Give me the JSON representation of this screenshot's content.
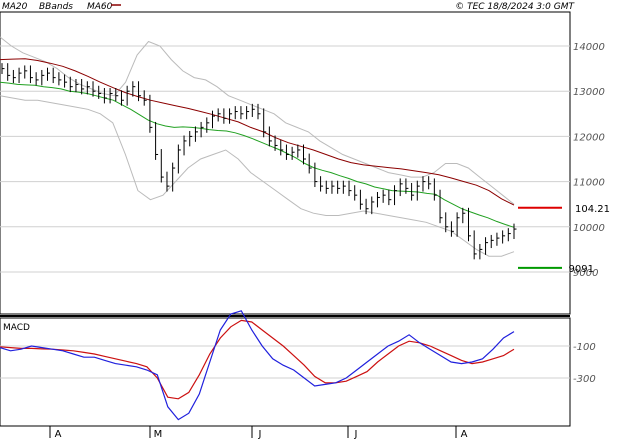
{
  "header": {
    "legend": [
      {
        "label": "MA20",
        "color": "#20a020"
      },
      {
        "label": "BBands",
        "color": "#aaaaaa"
      },
      {
        "label": "MA60",
        "color": "#8b0000"
      }
    ],
    "stamp": "© TEC 18/8/2024 3:0 GMT"
  },
  "colors": {
    "grid": "#d0d0d0",
    "candles": "#000000",
    "ma20": "#20a020",
    "ma60": "#8b0000",
    "bbands": "#bbbbbb",
    "flag_top": "#dd0000",
    "flag_bottom": "#009900",
    "macd_line": "#2020dd",
    "signal_line": "#cc1111"
  },
  "chart_data": [
    {
      "type": "line",
      "title": "",
      "y_ticks": [
        "14000",
        "13000",
        "12000",
        "11000",
        "10000",
        "9000"
      ],
      "ylim": [
        8800,
        14800
      ],
      "x_months": [
        "A",
        "M",
        "J",
        "J",
        "A"
      ],
      "price_ohlc_close": [
        13500,
        13350,
        13300,
        13400,
        13450,
        13300,
        13250,
        13350,
        13400,
        13300,
        13250,
        13200,
        13100,
        13150,
        13050,
        13100,
        13000,
        12950,
        12850,
        12950,
        12900,
        12800,
        13000,
        13100,
        12900,
        12800,
        12200,
        11600,
        11100,
        10900,
        11300,
        11700,
        11900,
        12000,
        12100,
        12200,
        12300,
        12450,
        12500,
        12400,
        12500,
        12550,
        12500,
        12550,
        12600,
        12500,
        12100,
        11900,
        11800,
        11700,
        11600,
        11650,
        11700,
        11500,
        11300,
        11000,
        10900,
        10850,
        10900,
        10850,
        10900,
        10800,
        10700,
        10500,
        10400,
        10550,
        10650,
        10700,
        10600,
        10800,
        10950,
        10850,
        10700,
        10900,
        11000,
        10950,
        10700,
        10200,
        10000,
        9900,
        10200,
        10300,
        9800,
        9400,
        9500,
        9650,
        9700,
        9750,
        9800,
        9850,
        9950
      ],
      "ma20": [
        13200,
        13180,
        13150,
        13140,
        13130,
        13100,
        13080,
        13050,
        13000,
        12980,
        12950,
        12900,
        12850,
        12800,
        12700,
        12600,
        12480,
        12360,
        12280,
        12230,
        12200,
        12210,
        12200,
        12180,
        12150,
        12130,
        12120,
        12080,
        12020,
        11950,
        11870,
        11790,
        11710,
        11620,
        11520,
        11400,
        11310,
        11250,
        11200,
        11130,
        11070,
        11000,
        10950,
        10880,
        10840,
        10800,
        10790,
        10780,
        10770,
        10740,
        10720,
        10600,
        10500,
        10400,
        10330,
        10260,
        10200,
        10120,
        10050,
        9990
      ],
      "ma60": [
        13700,
        13710,
        13720,
        13680,
        13620,
        13550,
        13450,
        13330,
        13200,
        13080,
        12970,
        12880,
        12800,
        12740,
        12680,
        12620,
        12550,
        12480,
        12400,
        12320,
        12200,
        12100,
        11970,
        11860,
        11780,
        11700,
        11600,
        11500,
        11420,
        11370,
        11340,
        11310,
        11280,
        11240,
        11200,
        11150,
        11080,
        11000,
        10920,
        10800,
        10620,
        10480
      ],
      "bb_upper": [
        14200,
        14000,
        13850,
        13750,
        13650,
        13500,
        13300,
        13150,
        13050,
        12950,
        12900,
        13200,
        13800,
        14100,
        14000,
        13700,
        13450,
        13300,
        13250,
        13100,
        12900,
        12800,
        12700,
        12600,
        12500,
        12300,
        12200,
        12100,
        11900,
        11750,
        11600,
        11500,
        11400,
        11300,
        11200,
        11150,
        11100,
        11100,
        11200,
        11400,
        11400,
        11300,
        11100,
        10900,
        10700,
        10500
      ],
      "bb_lower": [
        12900,
        12850,
        12800,
        12800,
        12750,
        12700,
        12650,
        12600,
        12500,
        12300,
        11600,
        10800,
        10600,
        10700,
        11000,
        11300,
        11500,
        11600,
        11700,
        11500,
        11200,
        11000,
        10800,
        10600,
        10400,
        10300,
        10250,
        10250,
        10300,
        10350,
        10300,
        10250,
        10200,
        10150,
        10100,
        10000,
        9900,
        9700,
        9500,
        9350,
        9350,
        9450
      ],
      "last_levels": [
        {
          "label": "104.21",
          "value": 10421
        },
        {
          "label": "9091",
          "value": 9091
        }
      ]
    },
    {
      "type": "line",
      "title": "MACD",
      "y_ticks": [
        "-100",
        "-300"
      ],
      "ylim": [
        -600,
        300
      ],
      "macd": [
        -110,
        -130,
        -120,
        -100,
        -110,
        -120,
        -130,
        -150,
        -170,
        -170,
        -190,
        -210,
        -220,
        -230,
        -250,
        -280,
        -480,
        -560,
        -520,
        -400,
        -200,
        0,
        100,
        120,
        0,
        -100,
        -180,
        -220,
        -250,
        -300,
        -350,
        -340,
        -330,
        -300,
        -250,
        -200,
        -150,
        -100,
        -70,
        -30,
        -80,
        -120,
        -160,
        -200,
        -210,
        -200,
        -180,
        -120,
        -50,
        -10
      ],
      "signal": [
        -105,
        -110,
        -115,
        -115,
        -118,
        -120,
        -125,
        -130,
        -140,
        -150,
        -165,
        -180,
        -195,
        -210,
        -230,
        -300,
        -420,
        -430,
        -390,
        -280,
        -150,
        -50,
        20,
        60,
        50,
        0,
        -50,
        -100,
        -160,
        -220,
        -290,
        -330,
        -330,
        -320,
        -290,
        -260,
        -200,
        -150,
        -100,
        -70,
        -80,
        -100,
        -130,
        -160,
        -190,
        -210,
        -200,
        -180,
        -160,
        -120
      ]
    }
  ]
}
